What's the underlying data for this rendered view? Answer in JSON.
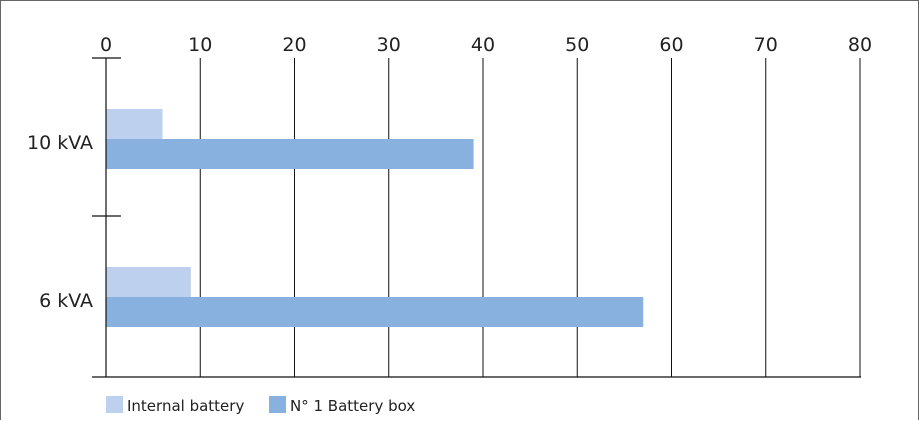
{
  "chart_data": {
    "type": "bar",
    "orientation": "horizontal",
    "categories": [
      "10 kVA",
      "6 kVA"
    ],
    "series": [
      {
        "name": "Internal battery",
        "values": [
          6,
          9
        ],
        "color": "#bdd1ee"
      },
      {
        "name": "N° 1 Battery box",
        "values": [
          39,
          57
        ],
        "color": "#89b1df"
      }
    ],
    "xlim": [
      0,
      80
    ],
    "x_ticks": [
      0,
      10,
      20,
      30,
      40,
      50,
      60,
      70,
      80
    ],
    "x_axis_position": "top",
    "grid": true,
    "legend_position": "bottom-left",
    "title": "",
    "xlabel": "",
    "ylabel": ""
  }
}
